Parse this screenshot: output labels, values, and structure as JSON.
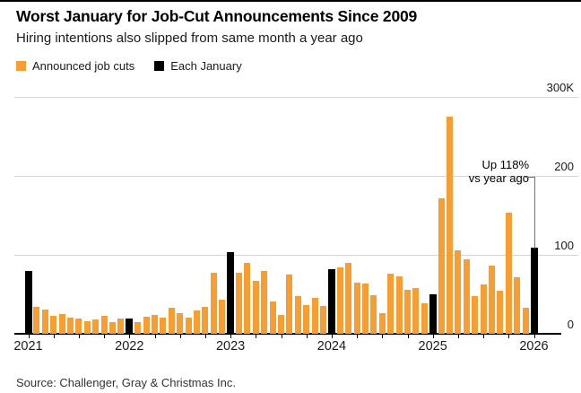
{
  "page": {
    "title": "Worst January for Job-Cut Announcements Since 2009",
    "subtitle": "Hiring intentions also slipped from same month a year ago",
    "source": "Source: Challenger, Gray & Christmas Inc."
  },
  "legend": {
    "items": [
      {
        "label": "Announced job cuts",
        "color": "#f79d31"
      },
      {
        "label": "Each January",
        "color": "#000000"
      }
    ]
  },
  "annotation": {
    "line1": "Up 118%",
    "line2": "vs year ago"
  },
  "colors": {
    "bar_orange": "#f79d31",
    "bar_january": "#000000",
    "gridline": "#d6d6d6",
    "axis": "#000000"
  },
  "chart_data": {
    "type": "bar",
    "title": "Worst January for Job-Cut Announcements Since 2009",
    "subtitle": "Hiring intentions also slipped from same month a year ago",
    "unit": "thousands of announced job cuts",
    "legend_position": "top-left",
    "grid": true,
    "annotation": "Up 118% vs year ago (points to Jan 2026 bar)",
    "categories": [
      "Jan 2021",
      "Feb 2021",
      "Mar 2021",
      "Apr 2021",
      "May 2021",
      "Jun 2021",
      "Jul 2021",
      "Aug 2021",
      "Sep 2021",
      "Oct 2021",
      "Nov 2021",
      "Dec 2021",
      "Jan 2022",
      "Feb 2022",
      "Mar 2022",
      "Apr 2022",
      "May 2022",
      "Jun 2022",
      "Jul 2022",
      "Aug 2022",
      "Sep 2022",
      "Oct 2022",
      "Nov 2022",
      "Dec 2022",
      "Jan 2023",
      "Feb 2023",
      "Mar 2023",
      "Apr 2023",
      "May 2023",
      "Jun 2023",
      "Jul 2023",
      "Aug 2023",
      "Sep 2023",
      "Oct 2023",
      "Nov 2023",
      "Dec 2023",
      "Jan 2024",
      "Feb 2024",
      "Mar 2024",
      "Apr 2024",
      "May 2024",
      "Jun 2024",
      "Jul 2024",
      "Aug 2024",
      "Sep 2024",
      "Oct 2024",
      "Nov 2024",
      "Dec 2024",
      "Jan 2025",
      "Feb 2025",
      "Mar 2025",
      "Apr 2025",
      "May 2025",
      "Jun 2025",
      "Jul 2025",
      "Aug 2025",
      "Sep 2025",
      "Oct 2025",
      "Nov 2025",
      "Dec 2025",
      "Jan 2026"
    ],
    "values": [
      79.6,
      34.5,
      30.6,
      22.9,
      24.6,
      20.5,
      18.9,
      15.7,
      17.9,
      22.8,
      14.9,
      19.1,
      19.1,
      15.2,
      21.4,
      24.3,
      20.7,
      32.5,
      25.8,
      20.4,
      29.9,
      33.8,
      76.8,
      43.7,
      102.9,
      77.8,
      89.7,
      67.0,
      80.1,
      40.7,
      23.7,
      75.2,
      47.5,
      36.8,
      45.5,
      34.8,
      82.3,
      84.6,
      90.3,
      64.8,
      63.8,
      48.8,
      25.9,
      75.9,
      72.8,
      55.6,
      57.7,
      38.8,
      49.8,
      172.0,
      275.2,
      105.4,
      93.8,
      48.0,
      62.1,
      85.9,
      54.1,
      153.1,
      71.3,
      33.0,
      108.6
    ],
    "january_indices": [
      0,
      12,
      24,
      36,
      48,
      60
    ],
    "series": [
      {
        "name": "Announced job cuts",
        "color": "#f79d31"
      },
      {
        "name": "Each January",
        "color": "#000000"
      }
    ],
    "y_axis": {
      "ticks": [
        0,
        100,
        200,
        300
      ],
      "tick_labels": [
        "0",
        "100",
        "200",
        "300K"
      ],
      "ylim": [
        0,
        300
      ],
      "side": "right"
    },
    "x_axis": {
      "year_labels": [
        "2021",
        "2022",
        "2023",
        "2024",
        "2025",
        "2026"
      ],
      "year_month_indices": [
        0,
        12,
        24,
        36,
        48,
        60
      ],
      "minor_tick_every_months": 3
    }
  }
}
